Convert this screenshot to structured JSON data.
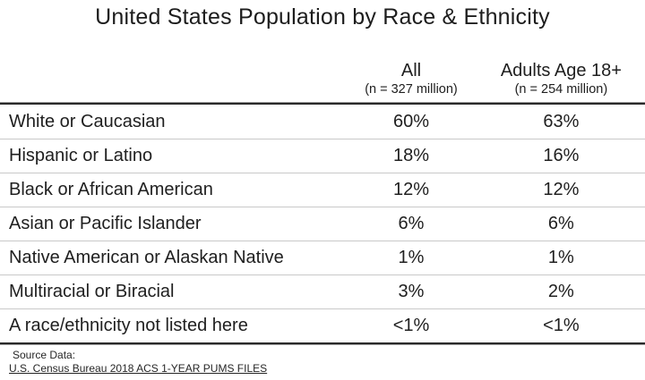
{
  "title": "United States Population by Race & Ethnicity",
  "table": {
    "columns": [
      {
        "label": "All",
        "sublabel": "(n = 327 million)"
      },
      {
        "label": "Adults Age 18+",
        "sublabel": "(n = 254 million)"
      }
    ],
    "rows": [
      {
        "label": "White or Caucasian",
        "all": "60%",
        "adults": "63%"
      },
      {
        "label": "Hispanic or Latino",
        "all": "18%",
        "adults": "16%"
      },
      {
        "label": "Black or African American",
        "all": "12%",
        "adults": "12%"
      },
      {
        "label": "Asian or Pacific Islander",
        "all": "6%",
        "adults": "6%"
      },
      {
        "label": "Native American or Alaskan Native",
        "all": "1%",
        "adults": "1%"
      },
      {
        "label": "Multiracial or Biracial",
        "all": "3%",
        "adults": "2%"
      },
      {
        "label": "A race/ethnicity not listed here",
        "all": "<1%",
        "adults": "<1%"
      }
    ]
  },
  "footer": {
    "source_label": "Source Data:",
    "source_citation": "U.S. Census Bureau 2018 ACS 1-YEAR PUMS FILES"
  },
  "colors": {
    "text": "#1d1d1d",
    "row_divider": "#c9c9c9",
    "rule_dark": "#2a2a2a",
    "rule_light": "#9a9a9a",
    "background": "#ffffff"
  },
  "chart_data": {
    "type": "table",
    "title": "United States Population by Race & Ethnicity",
    "categories": [
      "White or Caucasian",
      "Hispanic or Latino",
      "Black or African American",
      "Asian or Pacific Islander",
      "Native American or Alaskan Native",
      "Multiracial or Biracial",
      "A race/ethnicity not listed here"
    ],
    "series": [
      {
        "name": "All (n = 327 million)",
        "values": [
          "60%",
          "18%",
          "12%",
          "6%",
          "1%",
          "3%",
          "<1%"
        ]
      },
      {
        "name": "Adults Age 18+ (n = 254 million)",
        "values": [
          "63%",
          "16%",
          "12%",
          "6%",
          "1%",
          "2%",
          "<1%"
        ]
      }
    ],
    "source": "Source Data: U.S. Census Bureau 2018 ACS 1-YEAR PUMS FILES",
    "legend_position": "column-headers",
    "grid": "horizontal-rules-only"
  }
}
